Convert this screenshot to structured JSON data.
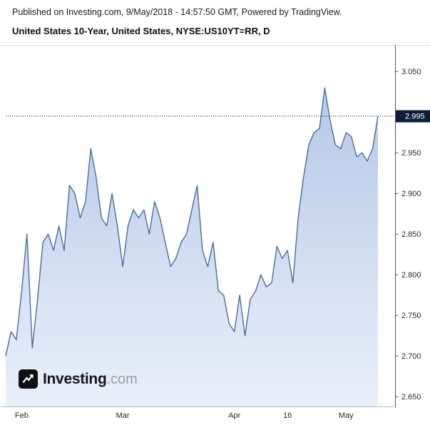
{
  "header": {
    "line1": "Published on Investing.com, 9/May/2018 - 14:57:50 GMT, Powered by TradingView.",
    "line2": "United States 10-Year, United States, NYSE:US10YT=RR, D"
  },
  "watermark": {
    "brand": "Investing",
    "suffix": ".com"
  },
  "chart_data": {
    "type": "area",
    "title": "United States 10-Year, United States, NYSE:US10YT=RR, D",
    "symbol": "NYSE:US10YT=RR",
    "interval": "D",
    "legend_position": "none",
    "grid": false,
    "ylim": [
      2.638,
      3.081
    ],
    "x_ticks": [
      {
        "label": "Feb",
        "index": 3
      },
      {
        "label": "Mar",
        "index": 22
      },
      {
        "label": "Apr",
        "index": 43
      },
      {
        "label": "16",
        "index": 53
      },
      {
        "label": "May",
        "index": 64
      }
    ],
    "y_ticks": [
      {
        "value": 3.05,
        "label": "3.050"
      },
      {
        "value": 2.95,
        "label": "2.950"
      },
      {
        "value": 2.9,
        "label": "2.900"
      },
      {
        "value": 2.85,
        "label": "2.850"
      },
      {
        "value": 2.8,
        "label": "2.800"
      },
      {
        "value": 2.75,
        "label": "2.750"
      },
      {
        "value": 2.7,
        "label": "2.700"
      },
      {
        "value": 2.65,
        "label": "2.650"
      }
    ],
    "values": [
      2.7,
      2.73,
      2.72,
      2.78,
      2.85,
      2.71,
      2.77,
      2.84,
      2.85,
      2.83,
      2.86,
      2.83,
      2.91,
      2.9,
      2.87,
      2.89,
      2.955,
      2.92,
      2.87,
      2.86,
      2.9,
      2.86,
      2.81,
      2.86,
      2.88,
      2.87,
      2.88,
      2.85,
      2.89,
      2.87,
      2.84,
      2.81,
      2.82,
      2.84,
      2.85,
      2.88,
      2.91,
      2.83,
      2.81,
      2.84,
      2.78,
      2.775,
      2.74,
      2.73,
      2.775,
      2.725,
      2.77,
      2.78,
      2.8,
      2.785,
      2.79,
      2.835,
      2.82,
      2.83,
      2.79,
      2.87,
      2.92,
      2.96,
      2.975,
      2.98,
      3.03,
      2.99,
      2.96,
      2.955,
      2.975,
      2.97,
      2.945,
      2.95,
      2.94,
      2.955,
      2.995
    ],
    "last_price": {
      "value": 2.995,
      "label": "2.995"
    },
    "colors": {
      "line": "#4a6da8",
      "fill_top": "#b5c8e8",
      "fill_bottom": "#eaf0fa",
      "badge_bg": "#0e1d38",
      "badge_text": "#ffffff",
      "axis_text": "#2a2a2a",
      "axis_line": "#555555",
      "dotted_line": "#000000"
    }
  }
}
